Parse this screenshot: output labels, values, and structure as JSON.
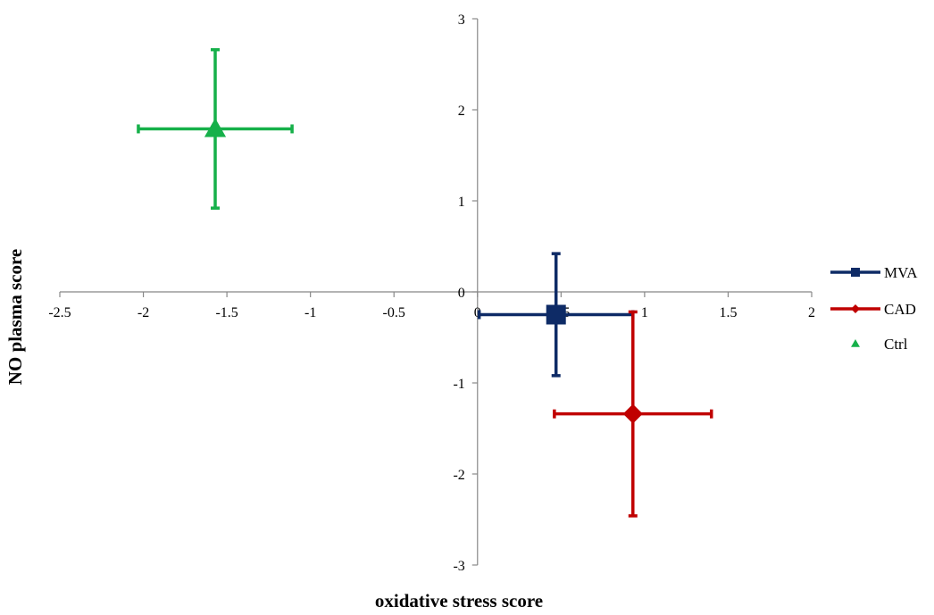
{
  "chart_data": {
    "type": "scatter",
    "xlabel": "oxidative stress score",
    "ylabel": "NO plasma score",
    "xlim": [
      -2.5,
      2
    ],
    "ylim": [
      -3,
      3
    ],
    "x_ticks": [
      -2.5,
      -2,
      -1.5,
      -1,
      -0.5,
      0,
      0.5,
      1,
      1.5,
      2
    ],
    "x_tick_labels": [
      "-2.5",
      "-2",
      "-1.5",
      "-1",
      "-0.5",
      "0",
      "0.5",
      "1",
      "1.5",
      "2"
    ],
    "y_ticks": [
      -3,
      -2,
      -1,
      0,
      1,
      2,
      3
    ],
    "y_tick_labels": [
      "-3",
      "-2",
      "-1",
      "0",
      "1",
      "2",
      "3"
    ],
    "grid": false,
    "legend_position": "right",
    "series": [
      {
        "name": "MVA",
        "color": "#0e2b66",
        "marker": "square",
        "points": [
          {
            "x": 0.47,
            "y": -0.25,
            "x_err": 0.46,
            "y_err": 0.67
          }
        ]
      },
      {
        "name": "CAD",
        "color": "#c00000",
        "marker": "diamond",
        "points": [
          {
            "x": 0.93,
            "y": -1.34,
            "x_err": 0.47,
            "y_err": 1.12
          }
        ]
      },
      {
        "name": "Ctrl",
        "color": "#16b04a",
        "marker": "triangle",
        "points": [
          {
            "x": -1.57,
            "y": 1.79,
            "x_err": 0.46,
            "y_err": 0.87
          }
        ]
      }
    ]
  }
}
